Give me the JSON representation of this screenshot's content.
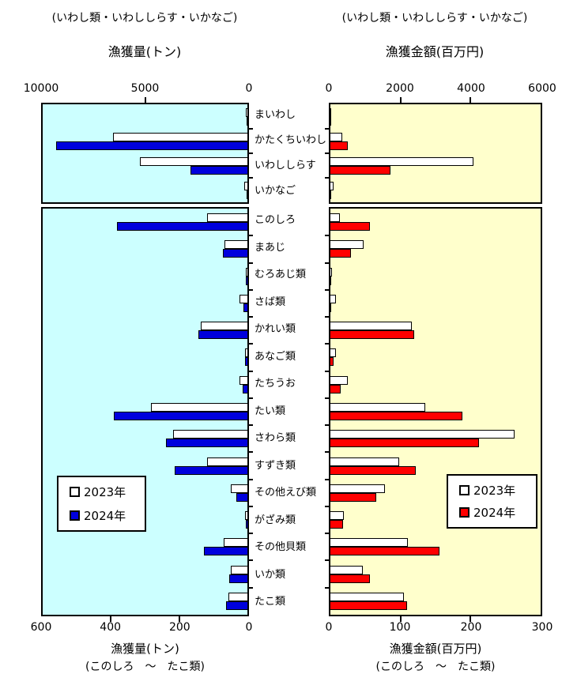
{
  "legend_left": {
    "items": [
      {
        "label": "2023年",
        "color": "#FFFFFF"
      },
      {
        "label": "2024年",
        "color": "#0000DD"
      }
    ]
  },
  "legend_right": {
    "items": [
      {
        "label": "2023年",
        "color": "#FFFFFF"
      },
      {
        "label": "2024年",
        "color": "#FF0000"
      }
    ]
  },
  "colors": {
    "panel_left_bg": "#CCFFFF",
    "panel_right_bg": "#FFFFCC",
    "bar_2023": "#FFFFFF",
    "bar_2024_left": "#0000DD",
    "bar_2024_right": "#FF0000",
    "border": "#000000"
  },
  "chart_data": [
    {
      "id": "catch-tons-iwashi",
      "type": "bar",
      "orientation": "horizontal",
      "subtitle": "(いわし類・いわししらす・いかなご)",
      "title": "漁獲量(トン)",
      "categories": [
        "まいわし",
        "かたくちいわし",
        "いわししらす",
        "いかなご"
      ],
      "series": [
        {
          "name": "2023年",
          "color": "#FFFFFF",
          "values": [
            120,
            6600,
            5300,
            180
          ]
        },
        {
          "name": "2024年",
          "color": "#0000DD",
          "values": [
            50,
            9400,
            2800,
            60
          ]
        }
      ],
      "xlim": [
        0,
        10000
      ],
      "ticks": [
        10000,
        5000,
        0
      ],
      "axis_reversed": true,
      "panel_bg": "#CCFFFF"
    },
    {
      "id": "catch-value-iwashi",
      "type": "bar",
      "orientation": "horizontal",
      "subtitle": "(いわし類・いわししらす・いかなご)",
      "title": "漁獲金額(百万円)",
      "categories": [
        "まいわし",
        "かたくちいわし",
        "いわししらす",
        "いかなご"
      ],
      "series": [
        {
          "name": "2023年",
          "color": "#FFFFFF",
          "values": [
            30,
            350,
            4100,
            110
          ]
        },
        {
          "name": "2024年",
          "color": "#FF0000",
          "values": [
            15,
            510,
            1740,
            30
          ]
        }
      ],
      "xlim": [
        0,
        6000
      ],
      "ticks": [
        0,
        2000,
        4000,
        6000
      ],
      "axis_reversed": false,
      "panel_bg": "#FFFFCC"
    },
    {
      "id": "catch-tons-main",
      "type": "bar",
      "orientation": "horizontal",
      "title": "漁獲量(トン)",
      "subtitle": "(このしろ　～　たこ類)",
      "categories": [
        "このしろ",
        "まあじ",
        "むろあじ類",
        "さば類",
        "かれい類",
        "あなご類",
        "たちうお",
        "たい類",
        "さわら類",
        "すずき類",
        "その他えび類",
        "がざみ類",
        "その他貝類",
        "いか類",
        "たこ類"
      ],
      "series": [
        {
          "name": "2023年",
          "color": "#FFFFFF",
          "values": [
            120,
            70,
            7,
            25,
            140,
            10,
            25,
            285,
            220,
            120,
            50,
            10,
            72,
            52,
            58
          ]
        },
        {
          "name": "2024年",
          "color": "#0000DD",
          "values": [
            385,
            75,
            6,
            14,
            145,
            10,
            16,
            395,
            240,
            215,
            35,
            8,
            130,
            55,
            65
          ]
        }
      ],
      "xlim": [
        0,
        600
      ],
      "ticks": [
        600,
        400,
        200,
        0
      ],
      "axis_reversed": true,
      "panel_bg": "#CCFFFF"
    },
    {
      "id": "catch-value-main",
      "type": "bar",
      "orientation": "horizontal",
      "title": "漁獲金額(百万円)",
      "subtitle": "(このしろ　～　たこ類)",
      "categories": [
        "このしろ",
        "まあじ",
        "むろあじ類",
        "さば類",
        "かれい類",
        "あなご類",
        "たちうお",
        "たい類",
        "さわら類",
        "すずき類",
        "その他えび類",
        "がざみ類",
        "その他貝類",
        "いか類",
        "たこ類"
      ],
      "series": [
        {
          "name": "2023年",
          "color": "#FFFFFF",
          "values": [
            15,
            48,
            3,
            9,
            117,
            9,
            26,
            136,
            264,
            99,
            79,
            20,
            112,
            47,
            106
          ]
        },
        {
          "name": "2024年",
          "color": "#FF0000",
          "values": [
            58,
            31,
            2,
            2,
            121,
            6,
            16,
            190,
            213,
            123,
            66,
            19,
            157,
            57,
            111
          ]
        }
      ],
      "xlim": [
        0,
        300
      ],
      "ticks": [
        0,
        100,
        200,
        300
      ],
      "axis_reversed": false,
      "panel_bg": "#FFFFCC"
    }
  ]
}
